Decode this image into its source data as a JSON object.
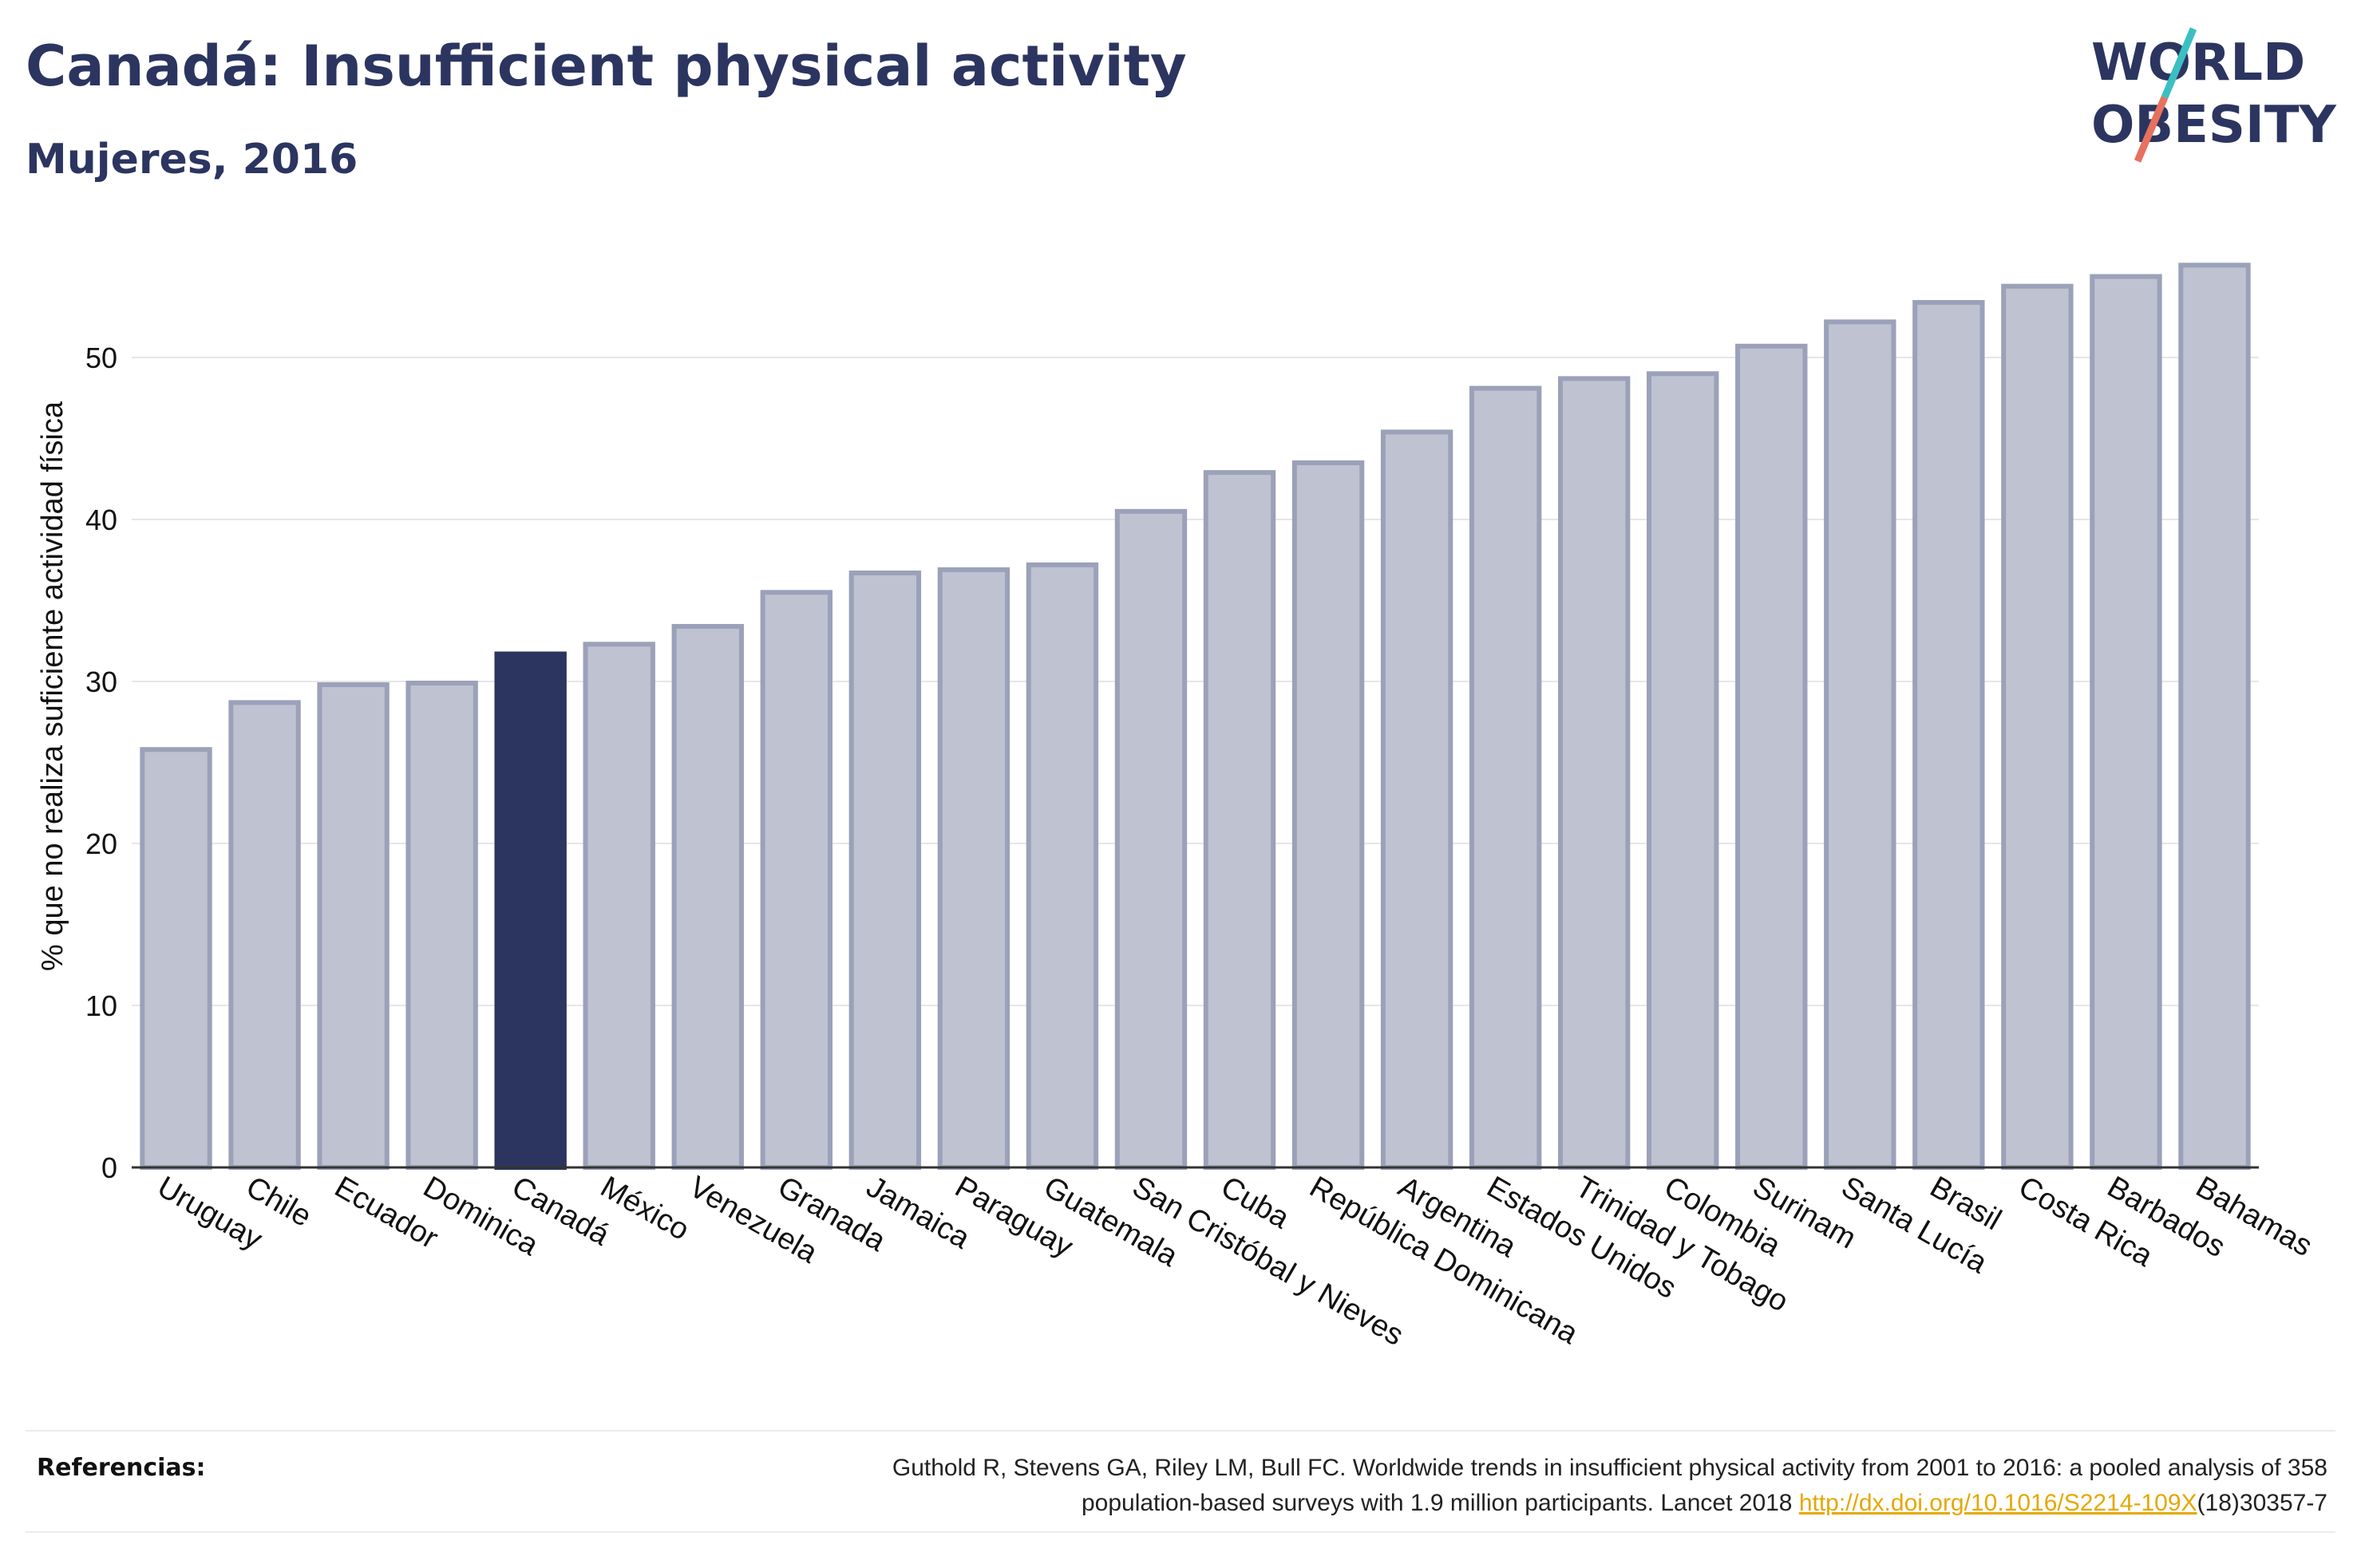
{
  "header": {
    "title": "Canadá: Insufficient physical activity",
    "subtitle": "Mujeres, 2016"
  },
  "logo": {
    "line1": "WORLD",
    "line2": "OBESITY",
    "colors": {
      "text": "#2b3560",
      "slash_teal": "#3bbfc2",
      "slash_coral": "#e7705f"
    }
  },
  "chart_data": {
    "type": "bar",
    "ylabel": "% que no realiza suficiente actividad física",
    "xlabel": "",
    "ylim": [
      0,
      58
    ],
    "yticks": [
      0,
      10,
      20,
      30,
      40,
      50
    ],
    "grid": true,
    "highlight": "Canadá",
    "colors": {
      "bar": "#bfc2d1",
      "bar_edge": "#9ba1b8",
      "highlight": "#2b3560"
    },
    "categories": [
      "Uruguay",
      "Chile",
      "Ecuador",
      "Dominica",
      "Canadá",
      "México",
      "Venezuela",
      "Granada",
      "Jamaica",
      "Paraguay",
      "Guatemala",
      "San Cristóbal y Nieves",
      "Cuba",
      "República Dominicana",
      "Argentina",
      "Estados Unidos",
      "Trinidad y Tobago",
      "Colombia",
      "Surinam",
      "Santa Lucía",
      "Brasil",
      "Costa Rica",
      "Barbados",
      "Bahamas"
    ],
    "values": [
      25.8,
      28.7,
      29.8,
      29.9,
      31.7,
      32.3,
      33.4,
      35.5,
      36.7,
      36.9,
      37.2,
      40.5,
      42.9,
      43.5,
      45.4,
      48.1,
      48.7,
      49.0,
      50.7,
      52.2,
      53.4,
      54.4,
      55.0,
      55.7
    ]
  },
  "references": {
    "label": "Referencias:",
    "text_line1": "Guthold R, Stevens GA, Riley LM, Bull FC. Worldwide trends in insufficient physical activity from 2001 to 2016: a pooled analysis of 358",
    "text_line2_before": "population-based surveys with 1.9 million participants. Lancet 2018 ",
    "link": "http://dx.doi.org/10.1016/S2214-109X",
    "text_line2_after": "(18)30357-7"
  }
}
